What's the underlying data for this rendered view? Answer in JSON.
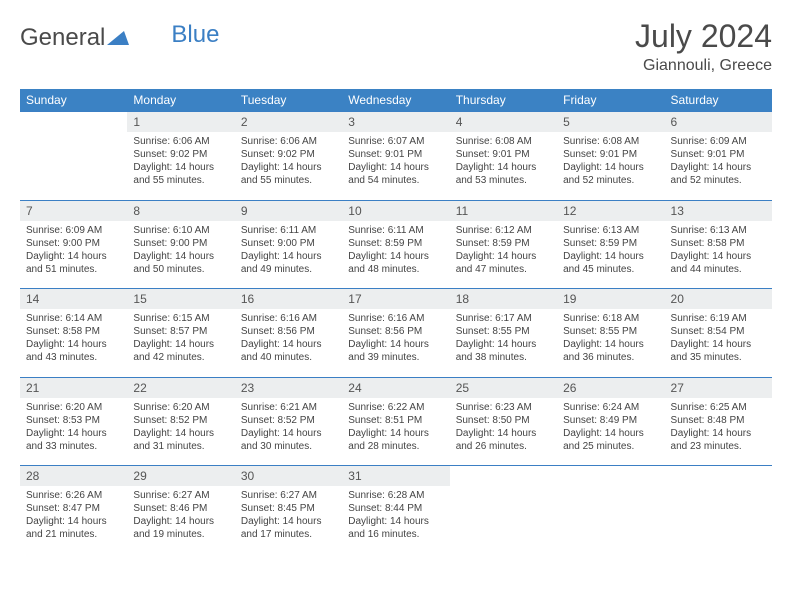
{
  "brand": {
    "part1": "General",
    "part2": "Blue"
  },
  "title": "July 2024",
  "location": "Giannouli, Greece",
  "colors": {
    "header_bg": "#3b82c4",
    "header_text": "#ffffff",
    "daynum_bg": "#eceeef",
    "rule": "#3b7fc4",
    "text": "#444444",
    "title_text": "#4a4a4a"
  },
  "weekdays": [
    "Sunday",
    "Monday",
    "Tuesday",
    "Wednesday",
    "Thursday",
    "Friday",
    "Saturday"
  ],
  "weeks": [
    {
      "nums": [
        "",
        "1",
        "2",
        "3",
        "4",
        "5",
        "6"
      ],
      "cells": [
        null,
        {
          "sunrise": "Sunrise: 6:06 AM",
          "sunset": "Sunset: 9:02 PM",
          "day1": "Daylight: 14 hours",
          "day2": "and 55 minutes."
        },
        {
          "sunrise": "Sunrise: 6:06 AM",
          "sunset": "Sunset: 9:02 PM",
          "day1": "Daylight: 14 hours",
          "day2": "and 55 minutes."
        },
        {
          "sunrise": "Sunrise: 6:07 AM",
          "sunset": "Sunset: 9:01 PM",
          "day1": "Daylight: 14 hours",
          "day2": "and 54 minutes."
        },
        {
          "sunrise": "Sunrise: 6:08 AM",
          "sunset": "Sunset: 9:01 PM",
          "day1": "Daylight: 14 hours",
          "day2": "and 53 minutes."
        },
        {
          "sunrise": "Sunrise: 6:08 AM",
          "sunset": "Sunset: 9:01 PM",
          "day1": "Daylight: 14 hours",
          "day2": "and 52 minutes."
        },
        {
          "sunrise": "Sunrise: 6:09 AM",
          "sunset": "Sunset: 9:01 PM",
          "day1": "Daylight: 14 hours",
          "day2": "and 52 minutes."
        }
      ]
    },
    {
      "nums": [
        "7",
        "8",
        "9",
        "10",
        "11",
        "12",
        "13"
      ],
      "cells": [
        {
          "sunrise": "Sunrise: 6:09 AM",
          "sunset": "Sunset: 9:00 PM",
          "day1": "Daylight: 14 hours",
          "day2": "and 51 minutes."
        },
        {
          "sunrise": "Sunrise: 6:10 AM",
          "sunset": "Sunset: 9:00 PM",
          "day1": "Daylight: 14 hours",
          "day2": "and 50 minutes."
        },
        {
          "sunrise": "Sunrise: 6:11 AM",
          "sunset": "Sunset: 9:00 PM",
          "day1": "Daylight: 14 hours",
          "day2": "and 49 minutes."
        },
        {
          "sunrise": "Sunrise: 6:11 AM",
          "sunset": "Sunset: 8:59 PM",
          "day1": "Daylight: 14 hours",
          "day2": "and 48 minutes."
        },
        {
          "sunrise": "Sunrise: 6:12 AM",
          "sunset": "Sunset: 8:59 PM",
          "day1": "Daylight: 14 hours",
          "day2": "and 47 minutes."
        },
        {
          "sunrise": "Sunrise: 6:13 AM",
          "sunset": "Sunset: 8:59 PM",
          "day1": "Daylight: 14 hours",
          "day2": "and 45 minutes."
        },
        {
          "sunrise": "Sunrise: 6:13 AM",
          "sunset": "Sunset: 8:58 PM",
          "day1": "Daylight: 14 hours",
          "day2": "and 44 minutes."
        }
      ]
    },
    {
      "nums": [
        "14",
        "15",
        "16",
        "17",
        "18",
        "19",
        "20"
      ],
      "cells": [
        {
          "sunrise": "Sunrise: 6:14 AM",
          "sunset": "Sunset: 8:58 PM",
          "day1": "Daylight: 14 hours",
          "day2": "and 43 minutes."
        },
        {
          "sunrise": "Sunrise: 6:15 AM",
          "sunset": "Sunset: 8:57 PM",
          "day1": "Daylight: 14 hours",
          "day2": "and 42 minutes."
        },
        {
          "sunrise": "Sunrise: 6:16 AM",
          "sunset": "Sunset: 8:56 PM",
          "day1": "Daylight: 14 hours",
          "day2": "and 40 minutes."
        },
        {
          "sunrise": "Sunrise: 6:16 AM",
          "sunset": "Sunset: 8:56 PM",
          "day1": "Daylight: 14 hours",
          "day2": "and 39 minutes."
        },
        {
          "sunrise": "Sunrise: 6:17 AM",
          "sunset": "Sunset: 8:55 PM",
          "day1": "Daylight: 14 hours",
          "day2": "and 38 minutes."
        },
        {
          "sunrise": "Sunrise: 6:18 AM",
          "sunset": "Sunset: 8:55 PM",
          "day1": "Daylight: 14 hours",
          "day2": "and 36 minutes."
        },
        {
          "sunrise": "Sunrise: 6:19 AM",
          "sunset": "Sunset: 8:54 PM",
          "day1": "Daylight: 14 hours",
          "day2": "and 35 minutes."
        }
      ]
    },
    {
      "nums": [
        "21",
        "22",
        "23",
        "24",
        "25",
        "26",
        "27"
      ],
      "cells": [
        {
          "sunrise": "Sunrise: 6:20 AM",
          "sunset": "Sunset: 8:53 PM",
          "day1": "Daylight: 14 hours",
          "day2": "and 33 minutes."
        },
        {
          "sunrise": "Sunrise: 6:20 AM",
          "sunset": "Sunset: 8:52 PM",
          "day1": "Daylight: 14 hours",
          "day2": "and 31 minutes."
        },
        {
          "sunrise": "Sunrise: 6:21 AM",
          "sunset": "Sunset: 8:52 PM",
          "day1": "Daylight: 14 hours",
          "day2": "and 30 minutes."
        },
        {
          "sunrise": "Sunrise: 6:22 AM",
          "sunset": "Sunset: 8:51 PM",
          "day1": "Daylight: 14 hours",
          "day2": "and 28 minutes."
        },
        {
          "sunrise": "Sunrise: 6:23 AM",
          "sunset": "Sunset: 8:50 PM",
          "day1": "Daylight: 14 hours",
          "day2": "and 26 minutes."
        },
        {
          "sunrise": "Sunrise: 6:24 AM",
          "sunset": "Sunset: 8:49 PM",
          "day1": "Daylight: 14 hours",
          "day2": "and 25 minutes."
        },
        {
          "sunrise": "Sunrise: 6:25 AM",
          "sunset": "Sunset: 8:48 PM",
          "day1": "Daylight: 14 hours",
          "day2": "and 23 minutes."
        }
      ]
    },
    {
      "nums": [
        "28",
        "29",
        "30",
        "31",
        "",
        "",
        ""
      ],
      "cells": [
        {
          "sunrise": "Sunrise: 6:26 AM",
          "sunset": "Sunset: 8:47 PM",
          "day1": "Daylight: 14 hours",
          "day2": "and 21 minutes."
        },
        {
          "sunrise": "Sunrise: 6:27 AM",
          "sunset": "Sunset: 8:46 PM",
          "day1": "Daylight: 14 hours",
          "day2": "and 19 minutes."
        },
        {
          "sunrise": "Sunrise: 6:27 AM",
          "sunset": "Sunset: 8:45 PM",
          "day1": "Daylight: 14 hours",
          "day2": "and 17 minutes."
        },
        {
          "sunrise": "Sunrise: 6:28 AM",
          "sunset": "Sunset: 8:44 PM",
          "day1": "Daylight: 14 hours",
          "day2": "and 16 minutes."
        },
        null,
        null,
        null
      ]
    }
  ]
}
